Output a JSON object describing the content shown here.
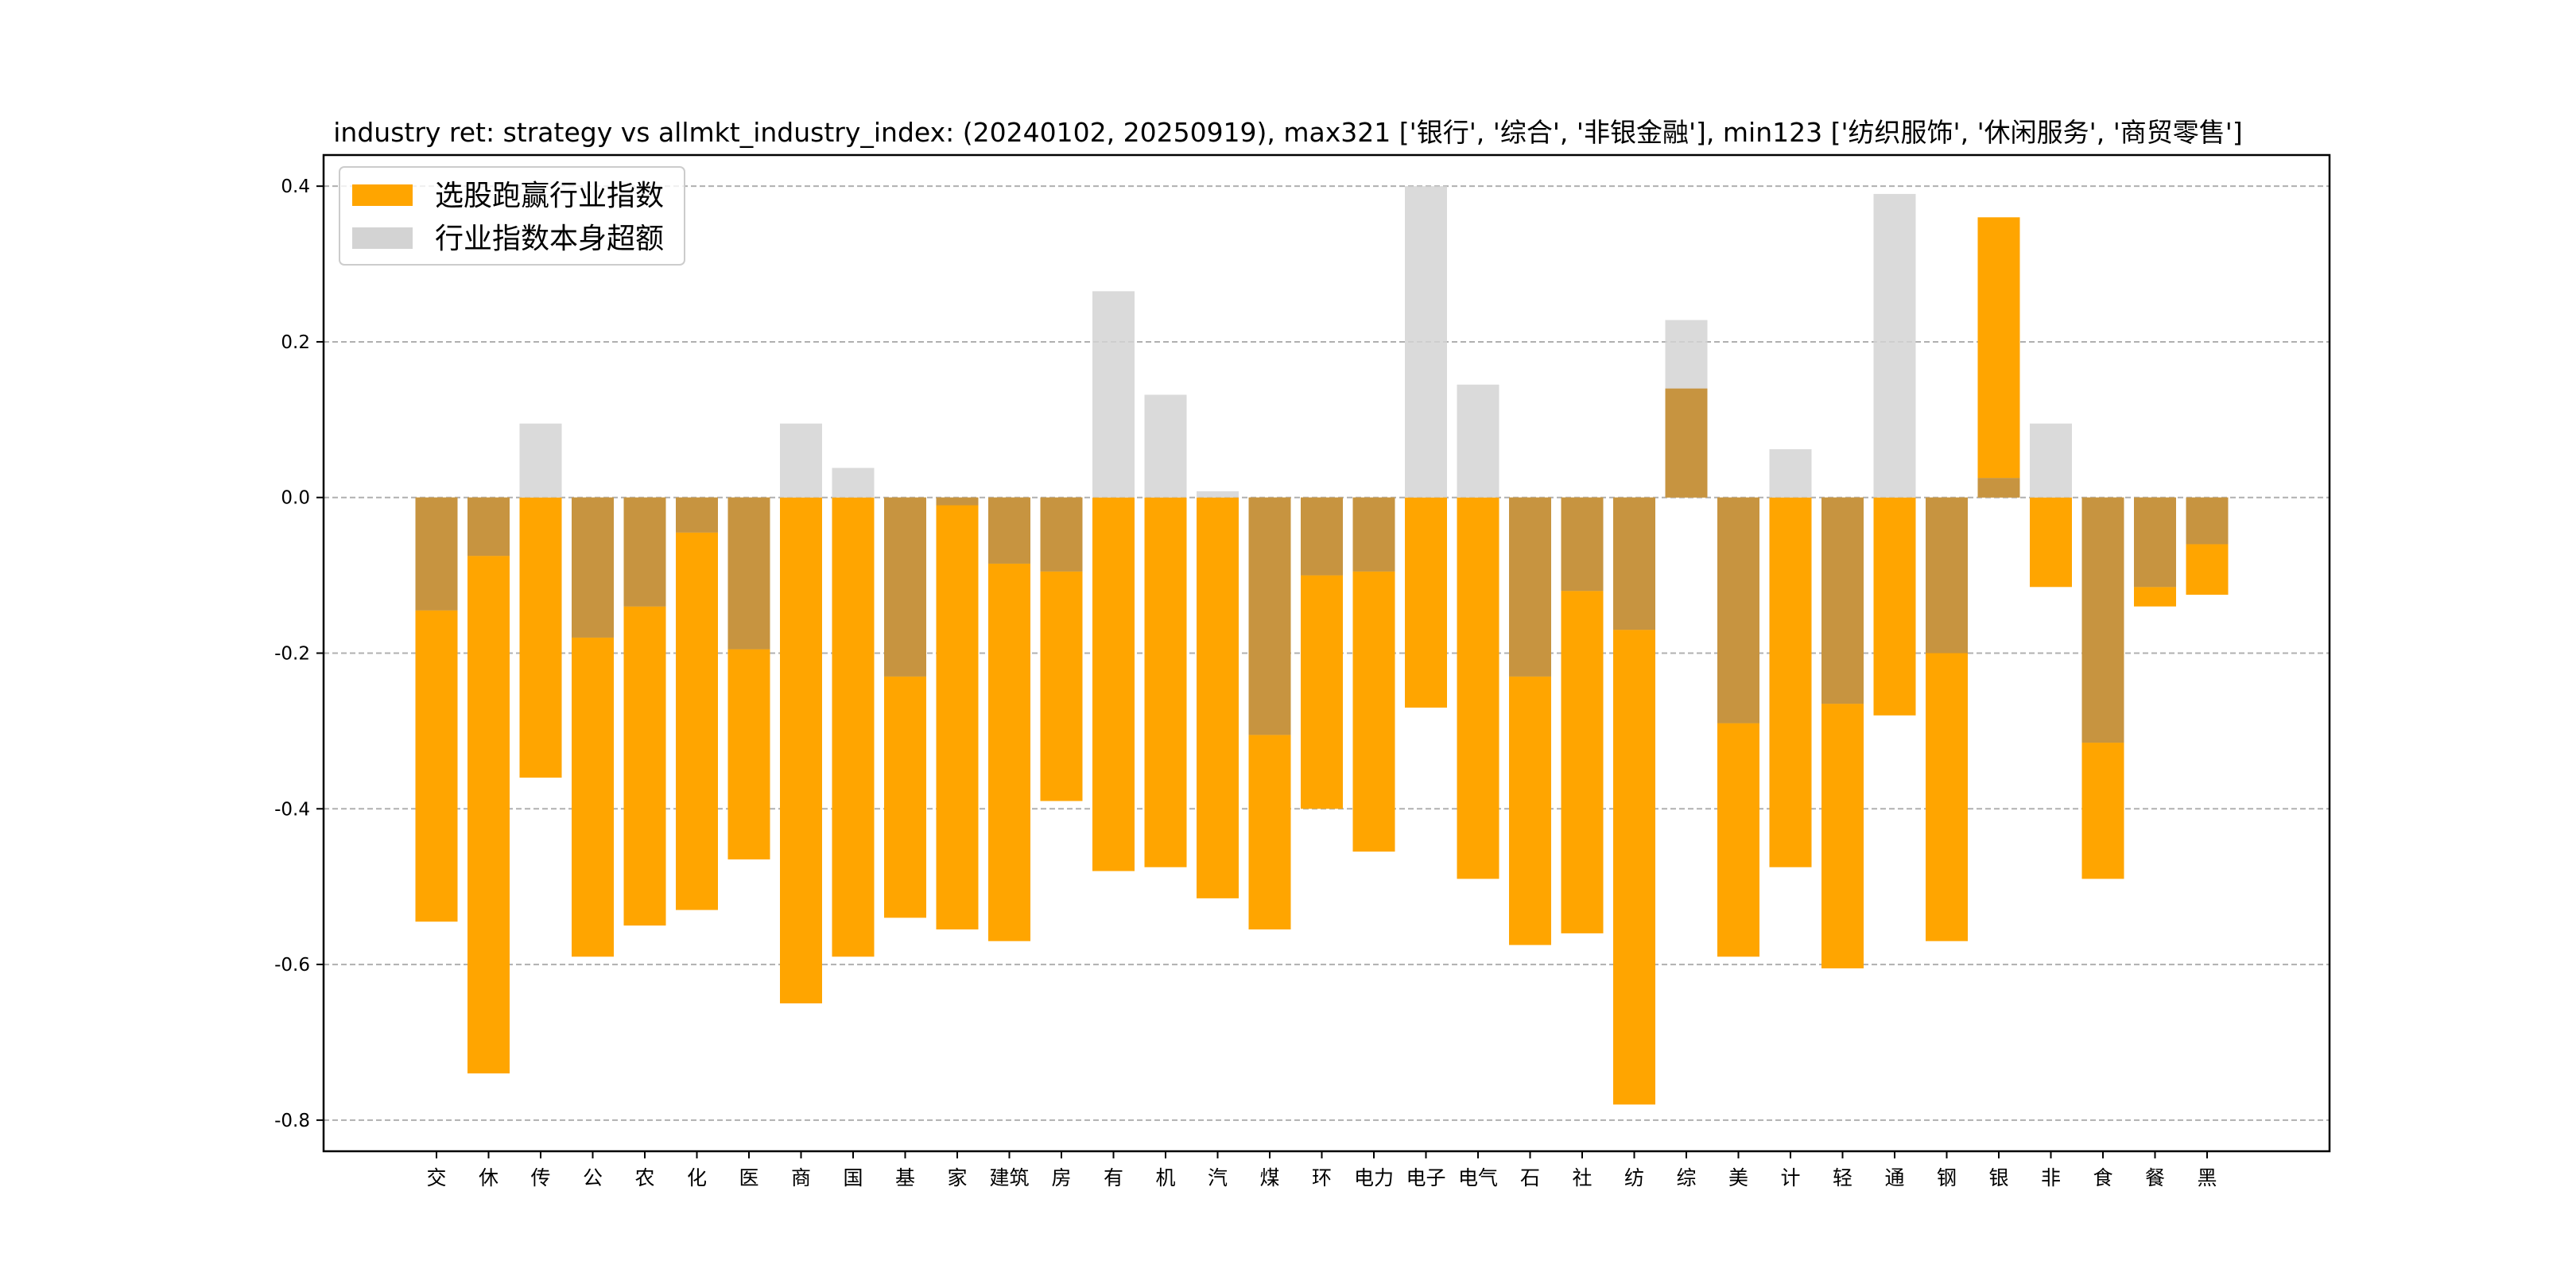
{
  "chart_data": {
    "type": "bar",
    "title": "industry ret: strategy vs allmkt_industry_index: (20240102, 20250919), max321 ['银行', '综合', '非银金融'], min123 ['纺织服饰', '休闲服务', '商贸零售']",
    "xlabel": "",
    "ylabel": "",
    "ylim": [
      -0.84,
      0.44
    ],
    "yticks": [
      0.4,
      0.2,
      0.0,
      -0.2,
      -0.4,
      -0.6,
      -0.8
    ],
    "ytick_labels": [
      "0.4",
      "0.2",
      "0.0",
      "-0.2",
      "-0.4",
      "-0.6",
      "-0.8"
    ],
    "grid": "horizontal dashed",
    "legend_position": "top-left",
    "categories": [
      "交",
      "休",
      "传",
      "公",
      "农",
      "化",
      "医",
      "商",
      "国",
      "基",
      "家",
      "建筑",
      "房",
      "有",
      "机",
      "汽",
      "煤",
      "环",
      "电力",
      "电子",
      "电气",
      "石",
      "社",
      "纺",
      "综",
      "美",
      "计",
      "轻",
      "通",
      "钢",
      "银",
      "非",
      "食",
      "餐",
      "黑"
    ],
    "series": [
      {
        "name": "选股跑赢行业指数",
        "color": "#FFA500",
        "values": [
          -0.545,
          -0.74,
          -0.36,
          -0.59,
          -0.55,
          -0.53,
          -0.465,
          -0.65,
          -0.59,
          -0.54,
          -0.555,
          -0.57,
          -0.39,
          -0.48,
          -0.475,
          -0.515,
          -0.555,
          -0.4,
          -0.455,
          -0.27,
          -0.49,
          -0.575,
          -0.56,
          -0.78,
          0.14,
          -0.59,
          -0.475,
          -0.605,
          -0.28,
          -0.57,
          0.36,
          -0.115,
          -0.49,
          -0.14,
          -0.125
        ]
      },
      {
        "name": "行业指数本身超额",
        "color": "#D3D3D3",
        "values": [
          -0.145,
          -0.075,
          0.095,
          -0.18,
          -0.14,
          -0.045,
          -0.195,
          0.095,
          0.038,
          -0.23,
          -0.01,
          -0.085,
          -0.095,
          0.265,
          0.132,
          0.008,
          -0.305,
          -0.1,
          -0.095,
          0.4,
          0.145,
          -0.23,
          -0.12,
          -0.17,
          0.228,
          -0.29,
          0.062,
          -0.265,
          0.39,
          -0.2,
          0.025,
          0.095,
          -0.315,
          -0.115,
          -0.06
        ]
      }
    ]
  }
}
